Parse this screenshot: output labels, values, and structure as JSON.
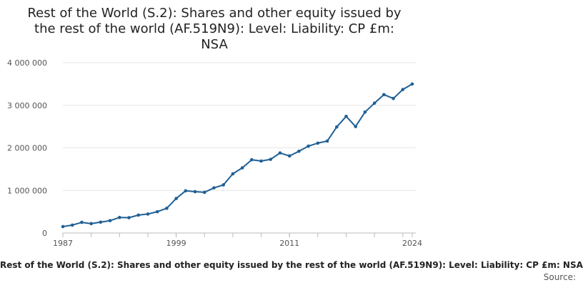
{
  "chart_data": {
    "type": "line",
    "title": "Rest of the World (S.2): Shares and other equity issued by the rest of the world (AF.519N9): Level: Liability: CP £m: NSA",
    "title_lines": [
      "Rest of the World (S.2): Shares and other equity issued by",
      "the rest of the world (AF.519N9): Level: Liability: CP £m:",
      "NSA"
    ],
    "caption": "Rest of the World (S.2): Shares and other equity issued by the rest of the world (AF.519N9): Level: Liability: CP £m: NSA",
    "source": "Source:",
    "xlabel": "",
    "ylabel": "",
    "xlim": [
      1987,
      2024
    ],
    "ylim": [
      0,
      4000000
    ],
    "x_ticks": [
      1987,
      1999,
      2011,
      2024
    ],
    "x_tick_labels": [
      "1987",
      "1999",
      "2011",
      "2024"
    ],
    "y_ticks": [
      0,
      1000000,
      2000000,
      3000000,
      4000000
    ],
    "y_tick_labels": [
      "0",
      "1 000 000",
      "2 000 000",
      "3 000 000",
      "4 000 000"
    ],
    "grid": true,
    "series": [
      {
        "name": "AF.519N9",
        "color": "#206095",
        "x": [
          1987,
          1988,
          1989,
          1990,
          1991,
          1992,
          1993,
          1994,
          1995,
          1996,
          1997,
          1998,
          1999,
          2000,
          2001,
          2002,
          2003,
          2004,
          2005,
          2006,
          2007,
          2008,
          2009,
          2010,
          2011,
          2012,
          2013,
          2014,
          2015,
          2016,
          2017,
          2018,
          2019,
          2020,
          2021,
          2022,
          2023,
          2024
        ],
        "values": [
          150000,
          185000,
          250000,
          220000,
          255000,
          290000,
          365000,
          360000,
          420000,
          445000,
          500000,
          580000,
          810000,
          990000,
          970000,
          955000,
          1060000,
          1130000,
          1390000,
          1530000,
          1720000,
          1690000,
          1730000,
          1880000,
          1810000,
          1920000,
          2040000,
          2110000,
          2160000,
          2490000,
          2740000,
          2500000,
          2840000,
          3050000,
          3250000,
          3160000,
          3370000,
          3500000
        ]
      }
    ]
  }
}
